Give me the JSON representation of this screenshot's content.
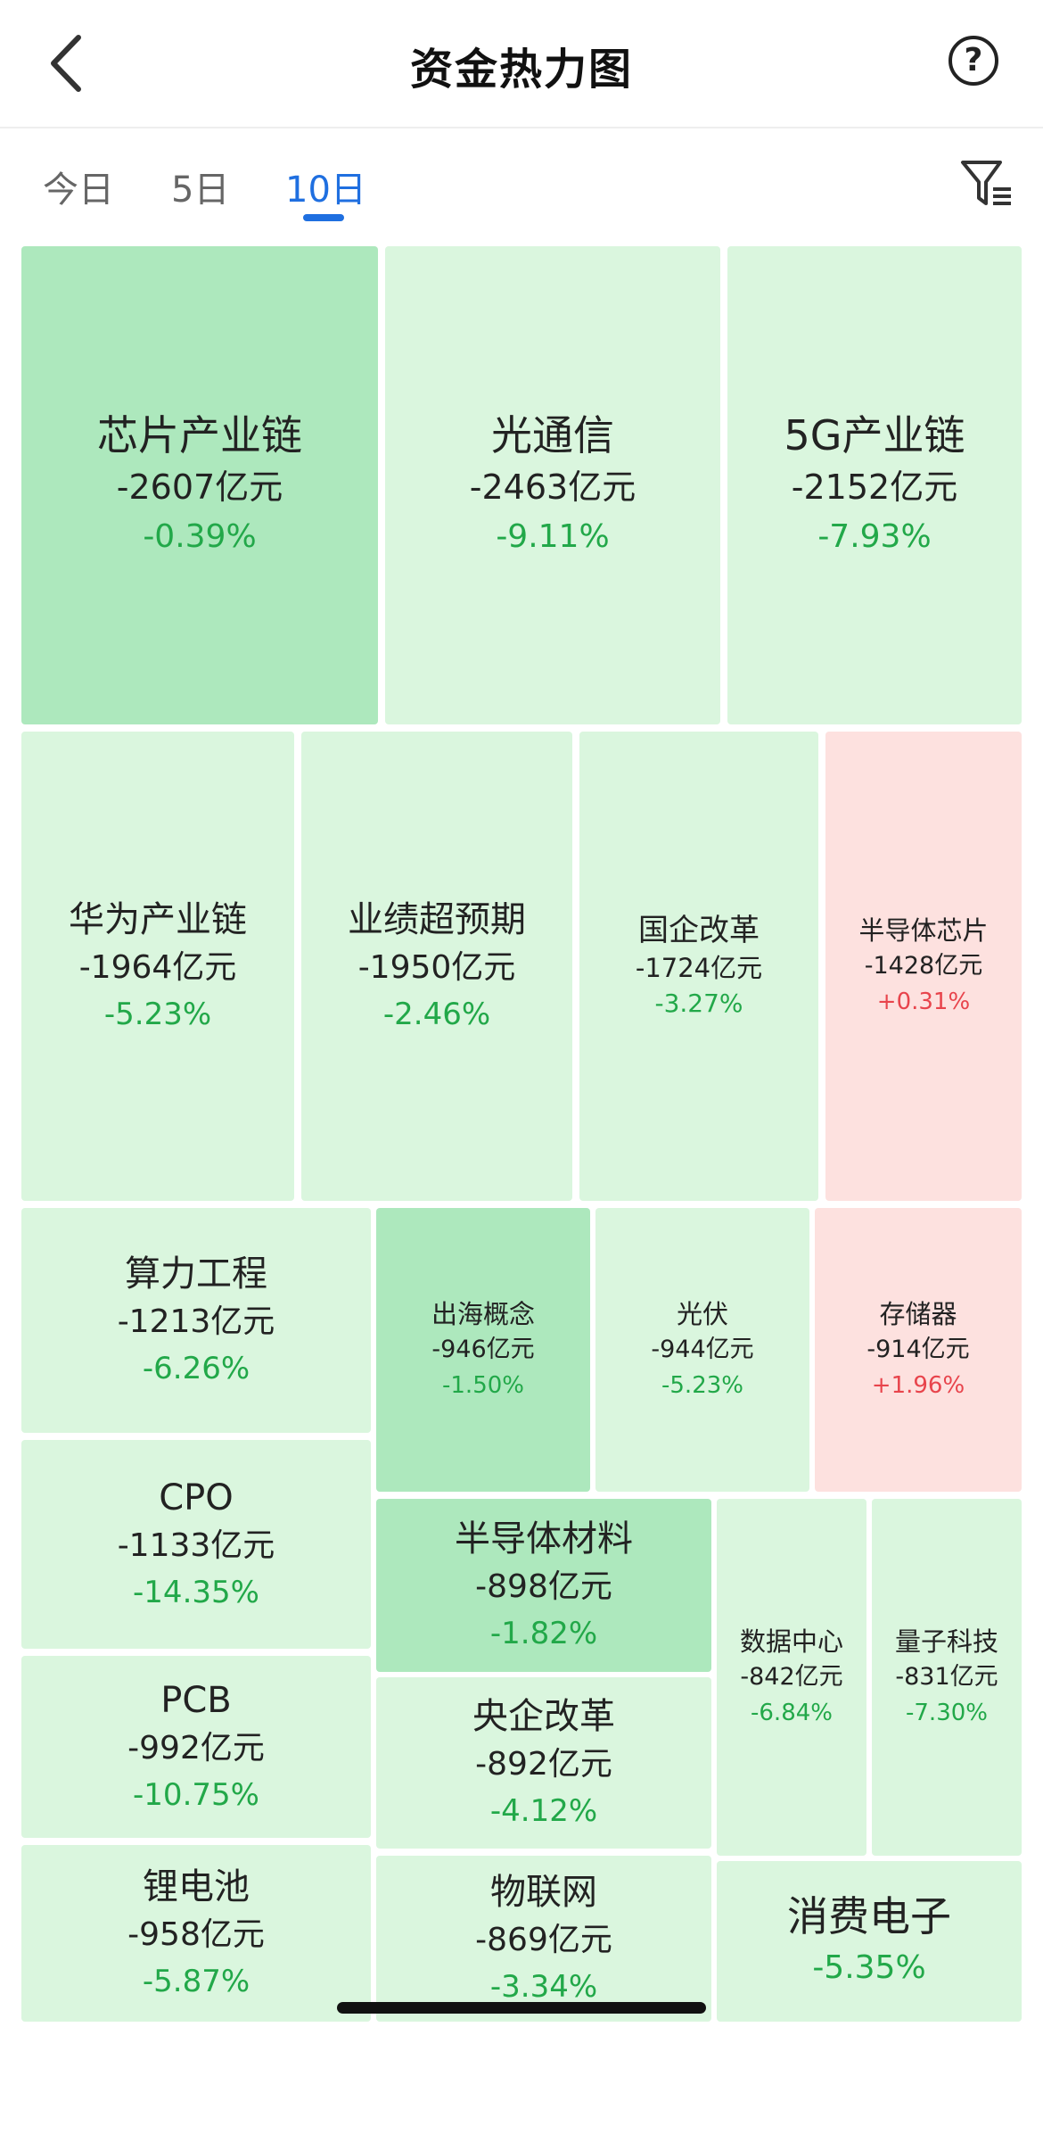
{
  "header": {
    "title": "资金热力图",
    "back_icon": "chevron-left-icon",
    "help_icon": "question-circle-icon",
    "help_glyph": "?"
  },
  "tabs": [
    {
      "label": "今日",
      "active": false
    },
    {
      "label": "5日",
      "active": false
    },
    {
      "label": "10日",
      "active": true
    }
  ],
  "filter_icon": "filter-icon",
  "colors": {
    "active_tab": "#1f6fe0",
    "down": "#22a849",
    "up": "#e8444c",
    "tile_light_green": "#daf6de",
    "tile_green": "#ade8bd",
    "tile_red": "#fde1df"
  },
  "heatmap": [
    {
      "name": "芯片产业链",
      "value": "-2607亿元",
      "change": "-0.39%"
    },
    {
      "name": "光通信",
      "value": "-2463亿元",
      "change": "-9.11%"
    },
    {
      "name": "5G产业链",
      "value": "-2152亿元",
      "change": "-7.93%"
    },
    {
      "name": "华为产业链",
      "value": "-1964亿元",
      "change": "-5.23%"
    },
    {
      "name": "业绩超预期",
      "value": "-1950亿元",
      "change": "-2.46%"
    },
    {
      "name": "国企改革",
      "value": "-1724亿元",
      "change": "-3.27%"
    },
    {
      "name": "半导体芯片",
      "value": "-1428亿元",
      "change": "+0.31%"
    },
    {
      "name": "算力工程",
      "value": "-1213亿元",
      "change": "-6.26%"
    },
    {
      "name": "出海概念",
      "value": "-946亿元",
      "change": "-1.50%"
    },
    {
      "name": "光伏",
      "value": "-944亿元",
      "change": "-5.23%"
    },
    {
      "name": "存储器",
      "value": "-914亿元",
      "change": "+1.96%"
    },
    {
      "name": "CPO",
      "value": "-1133亿元",
      "change": "-14.35%"
    },
    {
      "name": "半导体材料",
      "value": "-898亿元",
      "change": "-1.82%"
    },
    {
      "name": "数据中心",
      "value": "-842亿元",
      "change": "-6.84%"
    },
    {
      "name": "量子科技",
      "value": "-831亿元",
      "change": "-7.30%"
    },
    {
      "name": "PCB",
      "value": "-992亿元",
      "change": "-10.75%"
    },
    {
      "name": "央企改革",
      "value": "-892亿元",
      "change": "-4.12%"
    },
    {
      "name": "锂电池",
      "value": "-958亿元",
      "change": "-5.87%"
    },
    {
      "name": "物联网",
      "value": "-869亿元",
      "change": "-3.34%"
    },
    {
      "name": "消费电子",
      "value": "",
      "change": "-5.35%"
    }
  ]
}
